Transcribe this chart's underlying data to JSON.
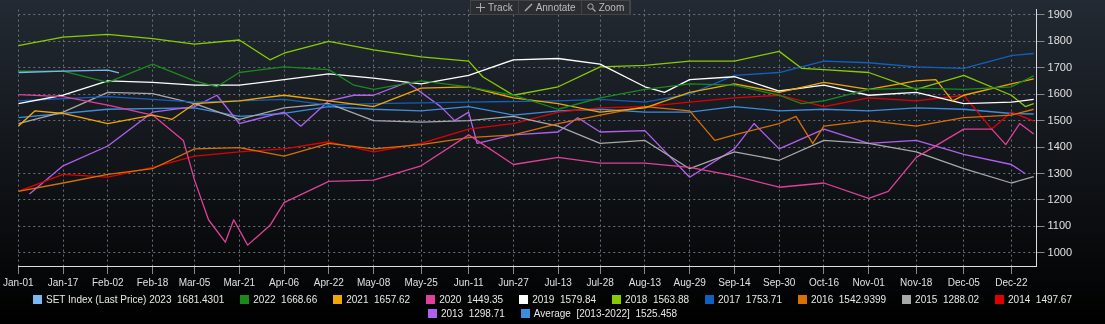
{
  "chart_data": {
    "type": "line",
    "annotations": [
      "Track",
      "Annotate",
      "Zoom"
    ],
    "xlim": [
      "--01-01",
      "--12-31"
    ],
    "xticks": [
      {
        "value": "--01-01",
        "label": "Jan-01"
      },
      {
        "value": "--01-17",
        "label": "Jan-17"
      },
      {
        "value": "--02-02",
        "label": "Feb-02"
      },
      {
        "value": "--02-18",
        "label": "Feb-18"
      },
      {
        "value": "--03-05",
        "label": "Mar-05"
      },
      {
        "value": "--03-21",
        "label": "Mar-21"
      },
      {
        "value": "--04-06",
        "label": "Apr-06"
      },
      {
        "value": "--04-22",
        "label": "Apr-22"
      },
      {
        "value": "--05-08",
        "label": "May-08"
      },
      {
        "value": "--05-25",
        "label": "May-25"
      },
      {
        "value": "--06-11",
        "label": "Jun-11"
      },
      {
        "value": "--06-27",
        "label": "Jun-27"
      },
      {
        "value": "--07-13",
        "label": "Jul-13"
      },
      {
        "value": "--07-28",
        "label": "Jul-28"
      },
      {
        "value": "--08-13",
        "label": "Aug-13"
      },
      {
        "value": "--08-29",
        "label": "Aug-29"
      },
      {
        "value": "--09-14",
        "label": "Sep-14"
      },
      {
        "value": "--09-30",
        "label": "Sep-30"
      },
      {
        "value": "--10-16",
        "label": "Oct-16"
      },
      {
        "value": "--11-01",
        "label": "Nov-01"
      },
      {
        "value": "--11-18",
        "label": "Nov-18"
      },
      {
        "value": "--12-05",
        "label": "Dec-05"
      },
      {
        "value": "--12-22",
        "label": "Dec-22"
      }
    ],
    "ylim": [
      950,
      1920
    ],
    "yticks": [
      1000,
      1100,
      1200,
      1300,
      1400,
      1500,
      1600,
      1700,
      1800,
      1900
    ],
    "grid": true,
    "legend": "bottom",
    "series": [
      {
        "name": "SET Index (Last Price) 2023  1681.4301",
        "color": "#7ab8f0",
        "x": [
          "--01-01",
          "--01-17",
          "--02-02",
          "--02-06"
        ],
        "values": [
          1682,
          1687,
          1691,
          1681
        ]
      },
      {
        "name": "2022  1668.66",
        "color": "#1a8a1a",
        "x": [
          "--01-01",
          "--01-17",
          "--02-02",
          "--02-18",
          "--03-05",
          "--03-13",
          "--03-21",
          "--04-06",
          "--04-22",
          "--05-01",
          "--05-08",
          "--05-25",
          "--06-11",
          "--06-27",
          "--07-13",
          "--07-28",
          "--08-13",
          "--08-29",
          "--09-14",
          "--09-30",
          "--10-08",
          "--10-16",
          "--11-01",
          "--11-18",
          "--12-05",
          "--12-22",
          "--12-30"
        ],
        "values": [
          1687,
          1687,
          1645,
          1714,
          1650,
          1628,
          1682,
          1703,
          1693,
          1634,
          1618,
          1650,
          1628,
          1596,
          1543,
          1586,
          1618,
          1639,
          1634,
          1596,
          1564,
          1575,
          1618,
          1623,
          1618,
          1628,
          1669
        ]
      },
      {
        "name": "2021  1657.62",
        "color": "#f0a800",
        "x": [
          "--01-01",
          "--01-07",
          "--01-17",
          "--02-02",
          "--02-18",
          "--02-25",
          "--03-05",
          "--03-21",
          "--04-06",
          "--04-22",
          "--05-08",
          "--05-25",
          "--06-11",
          "--06-27",
          "--07-13",
          "--07-28",
          "--08-13",
          "--08-29",
          "--09-14",
          "--09-30",
          "--10-16",
          "--11-01",
          "--11-18",
          "--11-25",
          "--12-01",
          "--12-05",
          "--12-22",
          "--12-30"
        ],
        "values": [
          1479,
          1537,
          1527,
          1489,
          1521,
          1505,
          1564,
          1575,
          1596,
          1575,
          1553,
          1623,
          1628,
          1586,
          1564,
          1532,
          1548,
          1607,
          1639,
          1607,
          1645,
          1618,
          1650,
          1655,
          1575,
          1596,
          1639,
          1658
        ]
      },
      {
        "name": "2020  1449.35",
        "color": "#e0409a",
        "x": [
          "--01-01",
          "--01-17",
          "--02-02",
          "--02-18",
          "--03-01",
          "--03-05",
          "--03-10",
          "--03-16",
          "--03-19",
          "--03-24",
          "--04-01",
          "--04-06",
          "--04-22",
          "--05-08",
          "--05-25",
          "--06-11",
          "--06-27",
          "--07-13",
          "--07-28",
          "--08-13",
          "--08-29",
          "--09-14",
          "--09-30",
          "--10-16",
          "--11-01",
          "--11-08",
          "--11-18",
          "--12-05",
          "--12-15",
          "--12-20",
          "--12-25",
          "--12-30"
        ],
        "values": [
          1598,
          1591,
          1559,
          1521,
          1425,
          1275,
          1125,
          1040,
          1125,
          1029,
          1104,
          1190,
          1270,
          1275,
          1329,
          1446,
          1334,
          1361,
          1339,
          1339,
          1323,
          1291,
          1248,
          1264,
          1206,
          1232,
          1361,
          1468,
          1468,
          1409,
          1489,
          1449
        ]
      },
      {
        "name": "2019  1579.84",
        "color": "#ffffff",
        "x": [
          "--01-01",
          "--01-17",
          "--02-02",
          "--02-18",
          "--03-05",
          "--03-21",
          "--04-06",
          "--04-22",
          "--05-08",
          "--05-25",
          "--06-11",
          "--06-27",
          "--07-13",
          "--07-28",
          "--08-13",
          "--08-20",
          "--08-29",
          "--09-14",
          "--09-30",
          "--10-16",
          "--11-01",
          "--11-18",
          "--12-05",
          "--12-22",
          "--12-30"
        ],
        "values": [
          1564,
          1596,
          1650,
          1645,
          1634,
          1634,
          1655,
          1677,
          1661,
          1639,
          1671,
          1730,
          1735,
          1714,
          1628,
          1607,
          1655,
          1666,
          1612,
          1634,
          1596,
          1607,
          1564,
          1570,
          1580
        ]
      },
      {
        "name": "2018  1563.88",
        "color": "#88cc00",
        "x": [
          "--01-01",
          "--01-17",
          "--02-02",
          "--02-18",
          "--03-05",
          "--03-21",
          "--04-01",
          "--04-06",
          "--04-22",
          "--05-08",
          "--05-25",
          "--06-11",
          "--06-16",
          "--06-27",
          "--07-13",
          "--07-28",
          "--08-13",
          "--08-29",
          "--09-14",
          "--09-30",
          "--10-08",
          "--10-16",
          "--11-01",
          "--11-18",
          "--12-05",
          "--12-22",
          "--12-27",
          "--12-30"
        ],
        "values": [
          1784,
          1816,
          1826,
          1810,
          1789,
          1805,
          1730,
          1755,
          1800,
          1768,
          1741,
          1725,
          1666,
          1596,
          1628,
          1703,
          1709,
          1725,
          1725,
          1762,
          1698,
          1693,
          1682,
          1618,
          1671,
          1596,
          1553,
          1564
        ]
      },
      {
        "name": "2017  1753.71",
        "color": "#1060c0",
        "x": [
          "--01-01",
          "--02-02",
          "--02-18",
          "--03-05",
          "--04-06",
          "--04-22",
          "--05-08",
          "--06-11",
          "--07-13",
          "--07-28",
          "--08-13",
          "--08-29",
          "--09-14",
          "--09-30",
          "--10-16",
          "--11-01",
          "--11-18",
          "--12-05",
          "--12-22",
          "--12-30"
        ],
        "values": [
          1575,
          1591,
          1580,
          1570,
          1580,
          1559,
          1564,
          1570,
          1575,
          1580,
          1570,
          1600,
          1671,
          1682,
          1725,
          1719,
          1703,
          1698,
          1746,
          1754
        ]
      },
      {
        "name": "2016  1542.9399",
        "color": "#d87000",
        "x": [
          "--01-01",
          "--01-17",
          "--02-02",
          "--02-18",
          "--03-05",
          "--03-21",
          "--04-06",
          "--04-22",
          "--05-08",
          "--05-25",
          "--06-11",
          "--06-27",
          "--07-13",
          "--07-28",
          "--08-13",
          "--08-29",
          "--09-07",
          "--09-14",
          "--09-30",
          "--10-06",
          "--10-12",
          "--10-16",
          "--11-01",
          "--11-18",
          "--12-05",
          "--12-22",
          "--12-30"
        ],
        "values": [
          1232,
          1264,
          1297,
          1318,
          1393,
          1398,
          1366,
          1414,
          1393,
          1409,
          1436,
          1446,
          1489,
          1521,
          1553,
          1537,
          1425,
          1446,
          1489,
          1516,
          1414,
          1479,
          1500,
          1479,
          1511,
          1521,
          1543
        ]
      },
      {
        "name": "2015  1288.02",
        "color": "#a8a8a8",
        "x": [
          "--01-01",
          "--01-17",
          "--02-02",
          "--02-18",
          "--03-05",
          "--03-21",
          "--04-06",
          "--04-22",
          "--05-08",
          "--05-25",
          "--06-11",
          "--06-27",
          "--07-13",
          "--07-28",
          "--08-13",
          "--08-29",
          "--09-14",
          "--09-30",
          "--10-16",
          "--11-01",
          "--11-18",
          "--12-05",
          "--12-22",
          "--12-30"
        ],
        "values": [
          1489,
          1532,
          1607,
          1602,
          1564,
          1505,
          1548,
          1564,
          1500,
          1494,
          1500,
          1516,
          1479,
          1414,
          1425,
          1318,
          1382,
          1350,
          1425,
          1414,
          1382,
          1318,
          1264,
          1288
        ]
      },
      {
        "name": "2014  1497.67",
        "color": "#e00000",
        "x": [
          "--01-01",
          "--01-17",
          "--02-02",
          "--02-18",
          "--03-05",
          "--03-21",
          "--04-06",
          "--04-22",
          "--05-08",
          "--05-25",
          "--06-11",
          "--06-27",
          "--07-13",
          "--07-28",
          "--08-13",
          "--08-29",
          "--09-14",
          "--09-30",
          "--10-16",
          "--11-01",
          "--11-18",
          "--12-05",
          "--12-15",
          "--12-22",
          "--12-30"
        ],
        "values": [
          1232,
          1297,
          1286,
          1323,
          1366,
          1382,
          1393,
          1420,
          1382,
          1414,
          1468,
          1489,
          1532,
          1548,
          1553,
          1570,
          1586,
          1596,
          1553,
          1586,
          1575,
          1596,
          1468,
          1532,
          1498
        ]
      },
      {
        "name": "2013  1298.71",
        "color": "#b060f0",
        "x": [
          "--01-05",
          "--01-17",
          "--02-02",
          "--02-18",
          "--03-05",
          "--03-13",
          "--03-21",
          "--04-06",
          "--04-12",
          "--04-22",
          "--05-01",
          "--05-08",
          "--05-20",
          "--06-01",
          "--06-06",
          "--06-11",
          "--06-14",
          "--06-27",
          "--07-13",
          "--07-20",
          "--07-28",
          "--08-13",
          "--08-29",
          "--09-14",
          "--09-21",
          "--09-30",
          "--10-16",
          "--11-01",
          "--11-18",
          "--12-05",
          "--12-22",
          "--12-27"
        ],
        "values": [
          1222,
          1329,
          1404,
          1532,
          1553,
          1596,
          1489,
          1532,
          1479,
          1575,
          1596,
          1596,
          1645,
          1553,
          1500,
          1532,
          1414,
          1446,
          1457,
          1511,
          1457,
          1462,
          1286,
          1393,
          1489,
          1393,
          1468,
          1414,
          1425,
          1372,
          1334,
          1299
        ]
      },
      {
        "name": "Average  [2013-2022]  1525.458",
        "color": "#3a8ee0",
        "x": [
          "--01-01",
          "--02-02",
          "--03-05",
          "--03-21",
          "--04-06",
          "--04-22",
          "--05-08",
          "--05-25",
          "--06-11",
          "--06-27",
          "--07-13",
          "--07-28",
          "--08-13",
          "--08-29",
          "--09-14",
          "--09-30",
          "--10-16",
          "--11-01",
          "--11-18",
          "--12-05",
          "--12-22",
          "--12-30"
        ],
        "values": [
          1511,
          1543,
          1548,
          1516,
          1527,
          1553,
          1543,
          1537,
          1553,
          1521,
          1537,
          1543,
          1532,
          1532,
          1553,
          1537,
          1543,
          1537,
          1548,
          1543,
          1527,
          1525
        ]
      }
    ]
  }
}
